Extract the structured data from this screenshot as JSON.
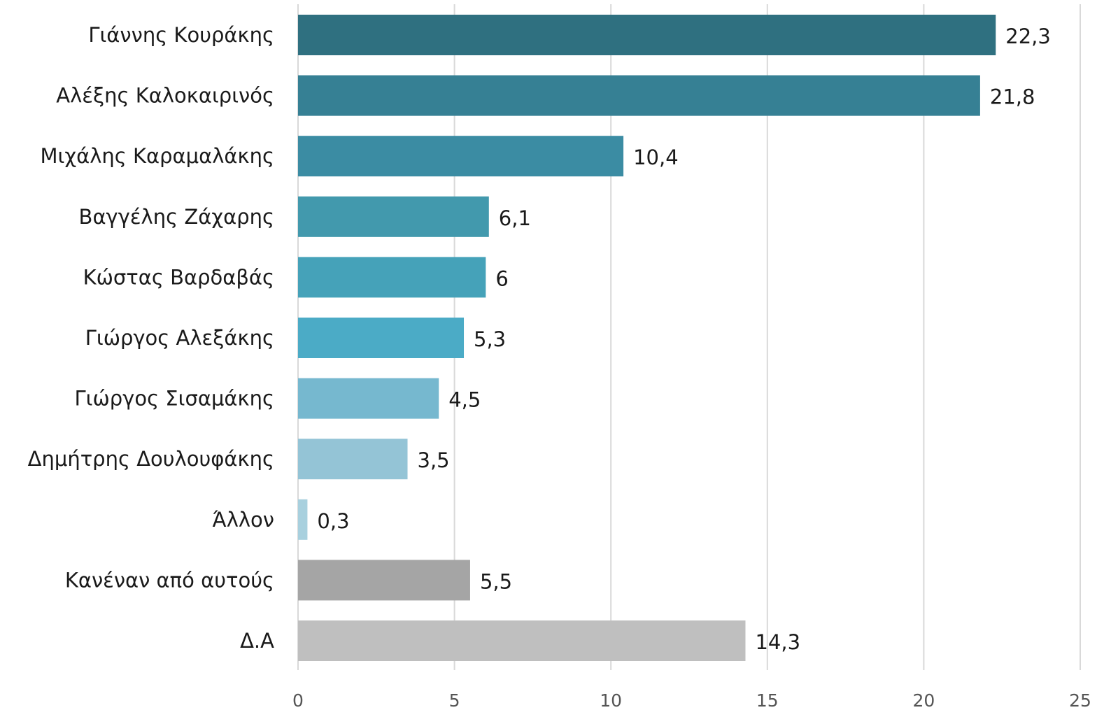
{
  "chart_data": {
    "type": "bar",
    "orientation": "horizontal",
    "title": "",
    "xlabel": "",
    "ylabel": "",
    "xlim": [
      0,
      25
    ],
    "x_ticks": [
      0,
      5,
      10,
      15,
      20,
      25
    ],
    "x_tick_labels": [
      "0",
      "5",
      "10",
      "15",
      "20",
      "25"
    ],
    "grid": "vertical",
    "legend": "none",
    "categories": [
      "Γιάννης Κουράκης",
      "Αλέξης Καλοκαιρινός",
      "Μιχάλης Καραμαλάκης",
      "Βαγγέλης Ζάχαρης",
      "Κώστας Βαρδαβάς",
      "Γιώργος Αλεξάκης",
      "Γιώργος Σισαμάκης",
      "Δημήτρης Δουλουφάκης",
      "Άλλον",
      "Κανέναν από αυτούς",
      "Δ.Α"
    ],
    "values": [
      22.3,
      21.8,
      10.4,
      6.1,
      6,
      5.3,
      4.5,
      3.5,
      0.3,
      5.5,
      14.3
    ],
    "value_labels": [
      "22,3",
      "21,8",
      "10,4",
      "6,1",
      "6",
      "5,3",
      "4,5",
      "3,5",
      "0,3",
      "5,5",
      "14,3"
    ],
    "colors": [
      "#2f7080",
      "#368094",
      "#3b8ca3",
      "#4299ad",
      "#45a2b9",
      "#4babc6",
      "#76b8cf",
      "#94c4d6",
      "#a8d0de",
      "#a5a5a5",
      "#bfbfbf"
    ],
    "gridline_color": "#d9d9d9"
  }
}
